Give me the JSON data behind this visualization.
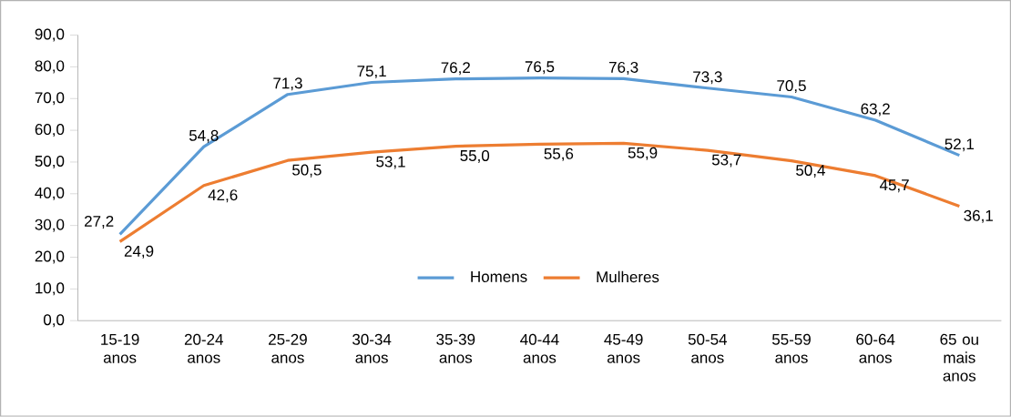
{
  "chart_data": {
    "type": "line",
    "categories": [
      "15-19 anos",
      "20-24 anos",
      "25-29 anos",
      "30-34 anos",
      "35-39 anos",
      "40-44 anos",
      "45-49 anos",
      "50-54 anos",
      "55-59 anos",
      "60-64 anos",
      "65 ou mais anos"
    ],
    "series": [
      {
        "name": "Homens",
        "color": "#5b9bd5",
        "values": [
          27.2,
          54.8,
          71.3,
          75.1,
          76.2,
          76.5,
          76.3,
          73.3,
          70.5,
          63.2,
          52.1
        ],
        "value_labels": [
          "27,2",
          "54,8",
          "71,3",
          "75,1",
          "76,2",
          "76,5",
          "76,3",
          "73,3",
          "70,5",
          "63,2",
          "52,1"
        ]
      },
      {
        "name": "Mulheres",
        "color": "#ed7d31",
        "values": [
          24.9,
          42.6,
          50.5,
          53.1,
          55.0,
          55.6,
          55.9,
          53.7,
          50.4,
          45.7,
          36.1
        ],
        "value_labels": [
          "24,9",
          "42,6",
          "50,5",
          "53,1",
          "55,0",
          "55,6",
          "55,9",
          "53,7",
          "50,4",
          "45,7",
          "36,1"
        ]
      }
    ],
    "ylim": [
      0,
      90
    ],
    "yticks": [
      {
        "value": 0,
        "label": "0,0"
      },
      {
        "value": 10,
        "label": "10,0"
      },
      {
        "value": 20,
        "label": "20,0"
      },
      {
        "value": 30,
        "label": "30,0"
      },
      {
        "value": 40,
        "label": "40,0"
      },
      {
        "value": 50,
        "label": "50,0"
      },
      {
        "value": 60,
        "label": "60,0"
      },
      {
        "value": 70,
        "label": "70,0"
      },
      {
        "value": 80,
        "label": "80,0"
      },
      {
        "value": 90,
        "label": "90,0"
      }
    ],
    "grid": false,
    "legend": "bottom",
    "marker": "none",
    "line_style": "solid"
  }
}
